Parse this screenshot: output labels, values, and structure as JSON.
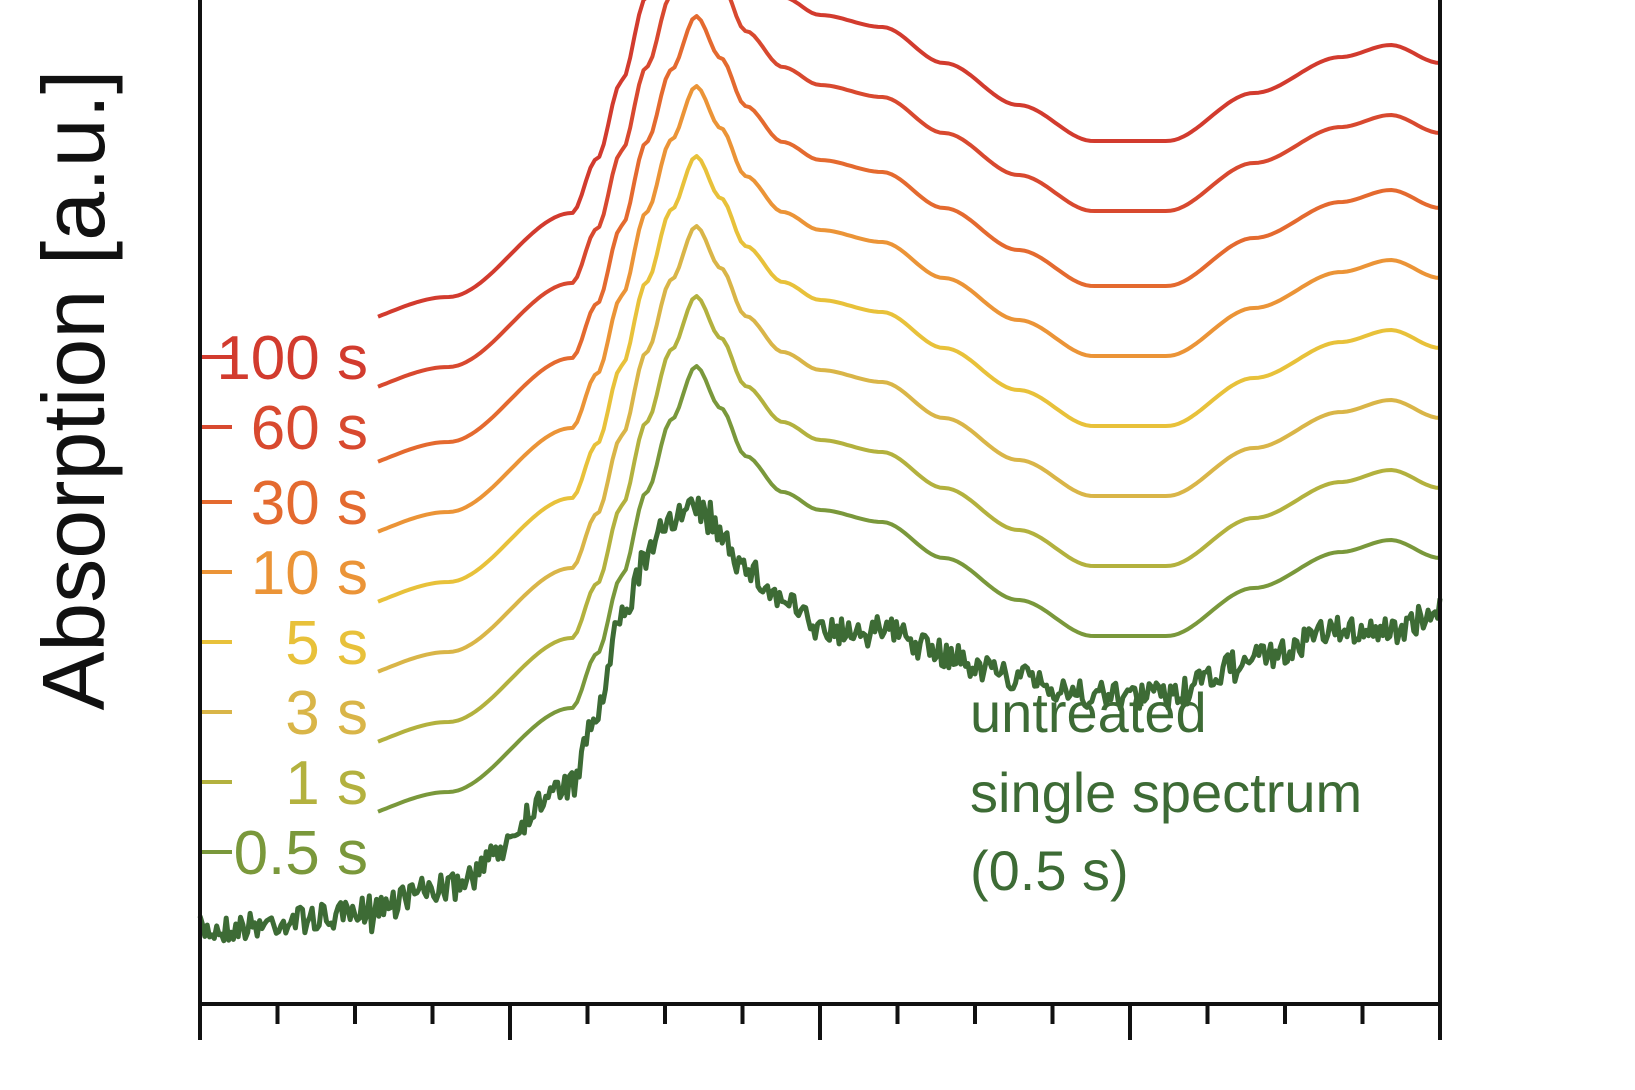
{
  "chart_data": {
    "type": "line",
    "ylabel": "Absorption [a.u.]",
    "xlabel": "",
    "x_tick_labels": [],
    "grid": false,
    "legend": "none",
    "series": [
      {
        "name": "100 s",
        "color": "#d23b2e"
      },
      {
        "name": "60 s",
        "color": "#d8492f"
      },
      {
        "name": "30 s",
        "color": "#e46a2f"
      },
      {
        "name": "10 s",
        "color": "#eb9437"
      },
      {
        "name": "5 s",
        "color": "#e8c13a"
      },
      {
        "name": "3 s",
        "color": "#d9b548"
      },
      {
        "name": "1 s",
        "color": "#b3b13e"
      },
      {
        "name": "0.5 s",
        "color": "#7a983b"
      },
      {
        "name": "untreated single spectrum (0.5 s)",
        "color": "#3d6b35"
      }
    ],
    "annotation": [
      "untreated",
      "single spectrum",
      "(0.5 s)"
    ],
    "shape_knots": {
      "x": [
        0,
        0.1,
        0.2,
        0.3,
        0.32,
        0.34,
        0.36,
        0.38,
        0.4,
        0.42,
        0.44,
        0.47,
        0.5,
        0.55,
        0.6,
        0.66,
        0.72,
        0.78,
        0.85,
        0.92,
        0.96,
        1.0
      ],
      "smooth": [
        0.0,
        0.025,
        0.08,
        0.22,
        0.31,
        0.44,
        0.58,
        0.7,
        0.79,
        0.72,
        0.64,
        0.58,
        0.55,
        0.53,
        0.47,
        0.4,
        0.34,
        0.34,
        0.42,
        0.48,
        0.5,
        0.47
      ],
      "untreated": [
        0.0,
        0.02,
        0.07,
        0.24,
        0.36,
        0.52,
        0.62,
        0.69,
        0.7,
        0.66,
        0.6,
        0.55,
        0.5,
        0.5,
        0.46,
        0.42,
        0.39,
        0.39,
        0.45,
        0.5,
        0.5,
        0.53
      ]
    }
  }
}
